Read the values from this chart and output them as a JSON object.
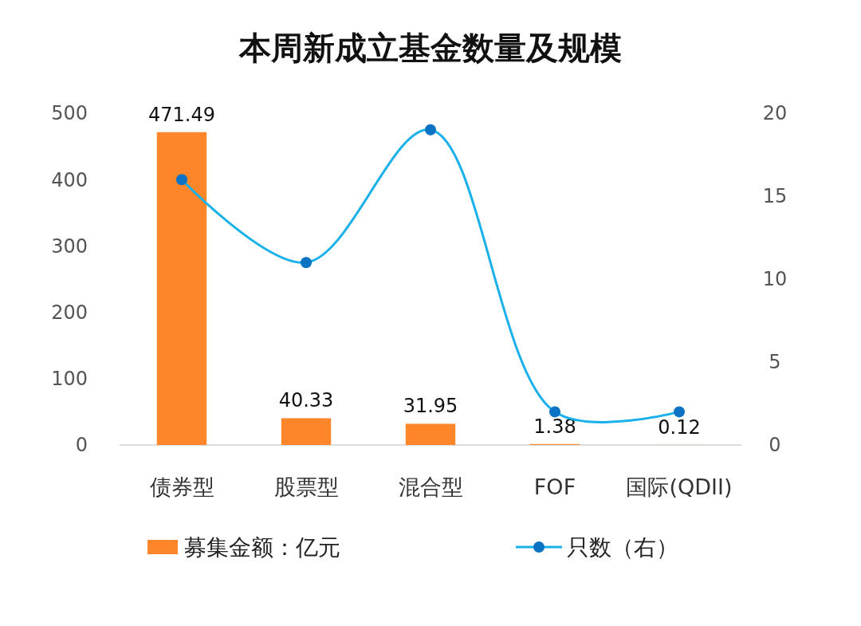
{
  "chart_data": {
    "type": "bar",
    "title": "本周新成立基金数量及规模",
    "categories": [
      "债券型",
      "股票型",
      "混合型",
      "FOF",
      "国际(QDII)"
    ],
    "series": [
      {
        "name": "募集金额：亿元",
        "color": "#fd862b",
        "values": [
          471.49,
          40.33,
          31.95,
          1.38,
          0.12
        ],
        "value_labels": [
          "471.49",
          "40.33",
          "31.95",
          "1.38",
          "0.12"
        ]
      },
      {
        "name": "只数（右）",
        "type": "line",
        "axis": "y2",
        "color": "#1ab0ea",
        "values": [
          16,
          11,
          19,
          2,
          2
        ]
      }
    ],
    "ylim": [
      0,
      500
    ],
    "yticks": [
      0,
      100,
      200,
      300,
      400,
      500
    ],
    "y2lim": [
      0,
      20
    ],
    "y2ticks": [
      0,
      5,
      10,
      15,
      20
    ],
    "legend": "bottom",
    "grid": false,
    "marker": "circle",
    "line_style": "solid"
  }
}
